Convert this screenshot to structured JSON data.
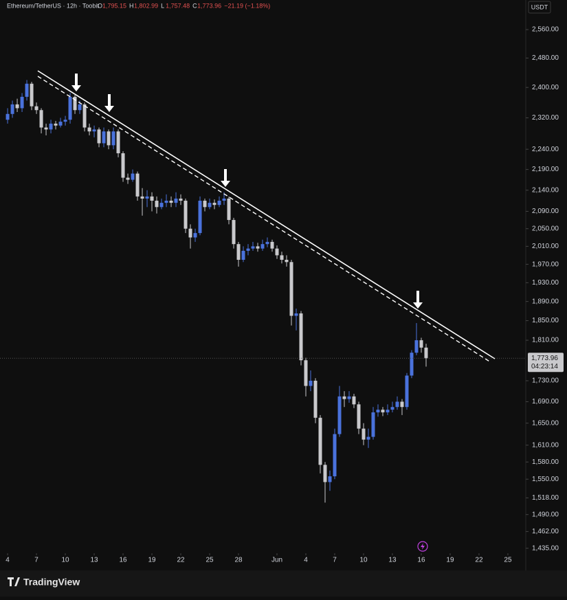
{
  "chart_data": {
    "type": "candlestick",
    "symbol": "Ethereum/TetherUS · 12h · Toobit",
    "ohlc_header": [
      [
        "O",
        "1,795.15"
      ],
      [
        "H",
        "1,802.99"
      ],
      [
        "L",
        "1,757.48"
      ],
      [
        "C",
        "1,773.96"
      ]
    ],
    "change": "−21.19 (−1.18%)",
    "currency": "USDT",
    "countdown": "04:23:14",
    "brand": "TradingView",
    "last_price": {
      "value": 1773.96,
      "label": "1,773.96"
    },
    "log_scale": true,
    "grid": false,
    "up_color": "#4a72dc",
    "down_color": "#c9c9cc",
    "xlim": [
      -0.79,
      53.86
    ],
    "ylim": [
      1427,
      2646
    ],
    "xticks": [
      {
        "value": 0,
        "label": "4"
      },
      {
        "value": 3,
        "label": "7"
      },
      {
        "value": 6,
        "label": "10"
      },
      {
        "value": 9,
        "label": "13"
      },
      {
        "value": 12,
        "label": "16"
      },
      {
        "value": 15,
        "label": "19"
      },
      {
        "value": 18,
        "label": "22"
      },
      {
        "value": 21,
        "label": "25"
      },
      {
        "value": 24,
        "label": "28"
      },
      {
        "value": 28,
        "label": "Jun"
      },
      {
        "value": 31,
        "label": "4"
      },
      {
        "value": 34,
        "label": "7"
      },
      {
        "value": 37,
        "label": "10"
      },
      {
        "value": 40,
        "label": "13"
      },
      {
        "value": 43,
        "label": "16"
      },
      {
        "value": 46,
        "label": "19"
      },
      {
        "value": 49,
        "label": "22"
      },
      {
        "value": 52,
        "label": "25"
      }
    ],
    "yticks": [
      {
        "value": 2560,
        "label": "2,560.00"
      },
      {
        "value": 2480,
        "label": "2,480.00"
      },
      {
        "value": 2400,
        "label": "2,400.00"
      },
      {
        "value": 2320,
        "label": "2,320.00"
      },
      {
        "value": 2240,
        "label": "2,240.00"
      },
      {
        "value": 2190,
        "label": "2,190.00"
      },
      {
        "value": 2140,
        "label": "2,140.00"
      },
      {
        "value": 2090,
        "label": "2,090.00"
      },
      {
        "value": 2050,
        "label": "2,050.00"
      },
      {
        "value": 2010,
        "label": "2,010.00"
      },
      {
        "value": 1970,
        "label": "1,970.00"
      },
      {
        "value": 1930,
        "label": "1,930.00"
      },
      {
        "value": 1890,
        "label": "1,890.00"
      },
      {
        "value": 1850,
        "label": "1,850.00"
      },
      {
        "value": 1810,
        "label": "1,810.00"
      },
      {
        "value": 1730,
        "label": "1,730.00"
      },
      {
        "value": 1690,
        "label": "1,690.00"
      },
      {
        "value": 1650,
        "label": "1,650.00"
      },
      {
        "value": 1610,
        "label": "1,610.00"
      },
      {
        "value": 1580,
        "label": "1,580.00"
      },
      {
        "value": 1550,
        "label": "1,550.00"
      },
      {
        "value": 1518,
        "label": "1,518.00"
      },
      {
        "value": 1490,
        "label": "1,490.00"
      },
      {
        "value": 1462,
        "label": "1,462.00"
      },
      {
        "value": 1435,
        "label": "1,435.00"
      }
    ],
    "x": [
      0,
      0.5,
      1,
      1.5,
      2,
      2.5,
      3,
      3.5,
      4,
      4.5,
      5,
      5.5,
      6,
      6.5,
      7,
      7.5,
      8,
      8.5,
      9,
      9.5,
      10,
      10.5,
      11,
      11.5,
      12,
      12.5,
      13,
      13.5,
      14,
      14.5,
      15,
      15.5,
      16,
      16.5,
      17,
      17.5,
      18,
      18.5,
      19,
      19.5,
      20,
      20.5,
      21,
      21.5,
      22,
      22.5,
      23,
      23.5,
      24,
      24.5,
      25,
      25.5,
      26,
      26.5,
      27,
      27.5,
      28,
      28.5,
      29,
      29.5,
      30,
      30.5,
      31,
      31.5,
      32,
      32.5,
      33,
      33.5,
      34,
      34.5,
      35,
      35.5,
      36,
      36.5,
      37,
      37.5,
      38,
      38.5,
      39,
      39.5,
      40,
      40.5,
      41,
      41.5,
      42,
      42.5,
      43,
      43.5
    ],
    "open": [
      2315,
      2330,
      2355,
      2345,
      2375,
      2410,
      2350,
      2340,
      2295,
      2290,
      2305,
      2300,
      2310,
      2315,
      2375,
      2340,
      2355,
      2295,
      2285,
      2290,
      2255,
      2285,
      2250,
      2285,
      2230,
      2170,
      2165,
      2180,
      2125,
      2120,
      2125,
      2115,
      2100,
      2110,
      2115,
      2110,
      2120,
      2115,
      2050,
      2030,
      2040,
      2115,
      2100,
      2110,
      2105,
      2115,
      2120,
      2070,
      2015,
      1980,
      2000,
      2005,
      2010,
      2005,
      2015,
      2020,
      2005,
      1990,
      1980,
      1975,
      1860,
      1865,
      1770,
      1720,
      1730,
      1660,
      1575,
      1545,
      1555,
      1630,
      1700,
      1695,
      1700,
      1685,
      1640,
      1620,
      1625,
      1670,
      1675,
      1670,
      1675,
      1680,
      1690,
      1680,
      1740,
      1785,
      1810,
      1795.15
    ],
    "high": [
      2345,
      2365,
      2370,
      2385,
      2420,
      2415,
      2360,
      2345,
      2305,
      2315,
      2312,
      2320,
      2325,
      2385,
      2380,
      2365,
      2360,
      2305,
      2300,
      2295,
      2295,
      2290,
      2295,
      2290,
      2235,
      2180,
      2190,
      2185,
      2145,
      2140,
      2135,
      2125,
      2120,
      2130,
      2125,
      2135,
      2130,
      2120,
      2060,
      2050,
      2125,
      2120,
      2120,
      2118,
      2125,
      2135,
      2125,
      2075,
      2020,
      2010,
      2015,
      2020,
      2018,
      2025,
      2030,
      2025,
      2012,
      1998,
      1990,
      1980,
      1875,
      1870,
      1775,
      1750,
      1735,
      1665,
      1580,
      1565,
      1640,
      1720,
      1710,
      1710,
      1705,
      1690,
      1650,
      1640,
      1680,
      1685,
      1680,
      1685,
      1690,
      1700,
      1695,
      1745,
      1790,
      1845,
      1815,
      1802.99
    ],
    "low": [
      2305,
      2320,
      2335,
      2335,
      2365,
      2340,
      2330,
      2280,
      2275,
      2280,
      2290,
      2295,
      2300,
      2305,
      2330,
      2330,
      2285,
      2275,
      2270,
      2245,
      2245,
      2240,
      2240,
      2220,
      2160,
      2155,
      2160,
      2115,
      2080,
      2100,
      2090,
      2085,
      2095,
      2100,
      2100,
      2100,
      2105,
      2040,
      2005,
      2020,
      2035,
      2090,
      2095,
      2095,
      2100,
      2105,
      2060,
      2005,
      1965,
      1975,
      1990,
      2000,
      1998,
      2000,
      2008,
      1998,
      1982,
      1972,
      1965,
      1840,
      1830,
      1760,
      1700,
      1710,
      1650,
      1560,
      1510,
      1530,
      1550,
      1625,
      1680,
      1688,
      1678,
      1630,
      1610,
      1605,
      1620,
      1662,
      1663,
      1665,
      1670,
      1675,
      1665,
      1675,
      1735,
      1780,
      1785,
      1757.48
    ],
    "close": [
      2330,
      2355,
      2345,
      2375,
      2410,
      2350,
      2340,
      2295,
      2290,
      2305,
      2300,
      2310,
      2315,
      2375,
      2340,
      2355,
      2295,
      2285,
      2290,
      2255,
      2285,
      2250,
      2285,
      2230,
      2170,
      2165,
      2180,
      2125,
      2120,
      2125,
      2115,
      2100,
      2110,
      2115,
      2110,
      2120,
      2115,
      2050,
      2030,
      2040,
      2115,
      2100,
      2110,
      2105,
      2115,
      2120,
      2070,
      2015,
      1980,
      2000,
      2005,
      2010,
      2005,
      2015,
      2020,
      2005,
      1990,
      1980,
      1975,
      1860,
      1865,
      1770,
      1720,
      1730,
      1660,
      1575,
      1545,
      1555,
      1630,
      1700,
      1695,
      1700,
      1685,
      1640,
      1620,
      1625,
      1670,
      1675,
      1670,
      1675,
      1680,
      1690,
      1680,
      1740,
      1785,
      1810,
      1795.15,
      1773.96
    ]
  }
}
